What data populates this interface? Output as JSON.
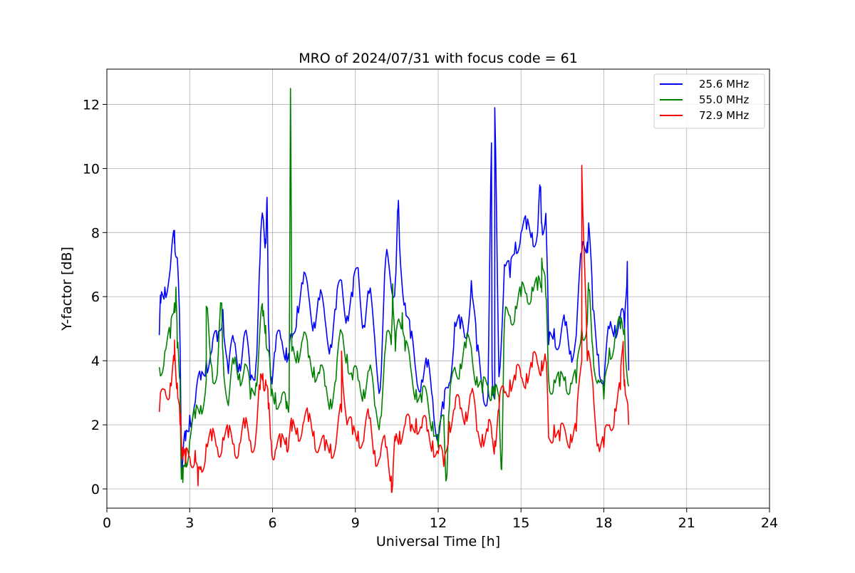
{
  "chart_data": {
    "type": "line",
    "title": "MRO of 2024/07/31 with focus code = 61",
    "xlabel": "Universal Time [h]",
    "ylabel": "Y-factor [dB]",
    "xlim": [
      0,
      24
    ],
    "ylim": [
      -0.6,
      13.1
    ],
    "xticks": [
      0,
      3,
      6,
      9,
      12,
      15,
      18,
      21,
      24
    ],
    "yticks": [
      0,
      2,
      4,
      6,
      8,
      10,
      12
    ],
    "grid": true,
    "legend_position": "top-right",
    "series": [
      {
        "name": "25.6 MHz",
        "color": "#0000ff",
        "x": [
          1.9,
          2.1,
          2.3,
          2.45,
          2.55,
          2.65,
          2.7,
          2.75,
          2.85,
          3.0,
          3.2,
          3.4,
          3.6,
          3.8,
          4.0,
          4.2,
          4.4,
          4.6,
          4.8,
          5.0,
          5.2,
          5.4,
          5.55,
          5.65,
          5.75,
          5.85,
          5.95,
          6.1,
          6.3,
          6.5,
          6.6,
          6.7,
          6.9,
          7.1,
          7.3,
          7.5,
          7.7,
          7.9,
          8.1,
          8.3,
          8.5,
          8.7,
          8.9,
          9.1,
          9.3,
          9.5,
          9.7,
          9.9,
          10.1,
          10.3,
          10.45,
          10.6,
          10.8,
          11.0,
          11.2,
          11.4,
          11.6,
          11.8,
          12.0,
          12.2,
          12.4,
          12.6,
          12.8,
          13.0,
          13.2,
          13.4,
          13.6,
          13.8,
          13.95,
          14.05,
          14.2,
          14.4,
          14.6,
          14.8,
          15.0,
          15.2,
          15.4,
          15.6,
          15.75,
          15.9,
          16.0,
          16.2,
          16.4,
          16.6,
          16.8,
          17.0,
          17.2,
          17.4,
          17.6,
          17.8,
          18.0,
          18.2,
          18.4,
          18.6,
          18.75,
          18.9
        ],
        "y": [
          4.8,
          6.3,
          6.9,
          7.8,
          7.2,
          4.5,
          1.0,
          0.9,
          1.5,
          2.3,
          2.7,
          3.4,
          4.0,
          4.3,
          4.6,
          5.6,
          3.6,
          4.6,
          3.9,
          4.9,
          3.4,
          3.9,
          7.3,
          8.5,
          7.8,
          5.2,
          3.5,
          4.3,
          4.7,
          4.4,
          4.0,
          4.7,
          5.7,
          6.4,
          6.1,
          5.2,
          5.9,
          5.3,
          4.5,
          5.6,
          6.5,
          5.4,
          6.0,
          6.9,
          5.1,
          6.1,
          4.7,
          3.1,
          7.2,
          6.3,
          6.5,
          7.6,
          5.8,
          4.7,
          3.6,
          3.4,
          3.8,
          2.8,
          1.7,
          2.5,
          3.3,
          5.2,
          5.0,
          4.7,
          6.5,
          4.3,
          3.2,
          2.9,
          3.8,
          3.0,
          3.5,
          7.0,
          6.6,
          7.7,
          8.0,
          8.1,
          8.0,
          8.0,
          8.3,
          8.6,
          4.5,
          5.0,
          4.5,
          5.1,
          4.3,
          4.8,
          7.4,
          7.7,
          5.6,
          4.2,
          3.2,
          5.0,
          5.1,
          5.4,
          5.0,
          3.7
        ],
        "spikes": [
          [
            1.95,
            5.8
          ],
          [
            2.45,
            8.0
          ],
          [
            5.8,
            9.1
          ],
          [
            10.55,
            8.8
          ],
          [
            13.93,
            10.8
          ],
          [
            14.05,
            11.9
          ],
          [
            15.7,
            9.3
          ],
          [
            17.45,
            8.3
          ],
          [
            18.85,
            7.1
          ]
        ]
      },
      {
        "name": "55.0 MHz",
        "color": "#008000",
        "x": [
          1.9,
          2.1,
          2.3,
          2.45,
          2.55,
          2.65,
          2.7,
          2.75,
          2.85,
          3.0,
          3.2,
          3.4,
          3.6,
          3.8,
          4.0,
          4.2,
          4.4,
          4.6,
          4.8,
          5.0,
          5.2,
          5.4,
          5.55,
          5.65,
          5.75,
          5.85,
          5.95,
          6.1,
          6.3,
          6.5,
          6.6,
          6.7,
          6.9,
          7.1,
          7.3,
          7.5,
          7.7,
          7.9,
          8.1,
          8.3,
          8.5,
          8.7,
          8.9,
          9.1,
          9.3,
          9.5,
          9.7,
          9.9,
          10.1,
          10.3,
          10.45,
          10.6,
          10.8,
          11.0,
          11.2,
          11.4,
          11.6,
          11.8,
          12.0,
          12.2,
          12.4,
          12.6,
          12.8,
          13.0,
          13.2,
          13.4,
          13.6,
          13.8,
          13.95,
          14.05,
          14.2,
          14.4,
          14.6,
          14.8,
          15.0,
          15.2,
          15.4,
          15.6,
          15.75,
          15.9,
          16.0,
          16.2,
          16.4,
          16.6,
          16.8,
          17.0,
          17.2,
          17.4,
          17.6,
          17.8,
          18.0,
          18.2,
          18.4,
          18.6,
          18.75,
          18.9
        ],
        "y": [
          3.8,
          4.3,
          4.7,
          5.8,
          4.4,
          3.4,
          0.3,
          0.2,
          1.0,
          1.5,
          2.2,
          2.6,
          3.4,
          3.8,
          3.6,
          4.3,
          2.6,
          3.9,
          3.6,
          3.9,
          2.8,
          3.3,
          5.1,
          5.4,
          5.1,
          4.3,
          2.9,
          3.0,
          2.7,
          2.5,
          2.8,
          4.3,
          4.3,
          4.7,
          4.1,
          3.8,
          3.6,
          3.2,
          2.8,
          3.4,
          4.9,
          4.2,
          3.4,
          3.4,
          3.1,
          3.7,
          2.6,
          2.2,
          4.5,
          4.5,
          4.3,
          5.2,
          4.3,
          3.8,
          3.1,
          2.7,
          2.9,
          2.1,
          1.3,
          2.3,
          2.5,
          3.8,
          3.9,
          4.4,
          4.4,
          3.5,
          3.0,
          3.2,
          3.2,
          2.8,
          2.9,
          5.2,
          5.4,
          5.7,
          6.0,
          6.1,
          6.3,
          6.2,
          6.3,
          6.0,
          3.4,
          3.4,
          3.2,
          3.5,
          3.3,
          3.3,
          5.0,
          5.2,
          4.4,
          3.4,
          2.8,
          4.4,
          4.7,
          5.0,
          5.0,
          3.2
        ],
        "spikes": [
          [
            2.5,
            6.3
          ],
          [
            3.6,
            5.7
          ],
          [
            4.15,
            5.8
          ],
          [
            6.65,
            12.5
          ],
          [
            10.35,
            6.4
          ],
          [
            10.7,
            5.5
          ],
          [
            12.3,
            0.3
          ],
          [
            14.3,
            0.6
          ],
          [
            15.75,
            7.2
          ],
          [
            17.45,
            6.2
          ]
        ]
      },
      {
        "name": "72.9 MHz",
        "color": "#ff0000",
        "x": [
          1.9,
          2.1,
          2.3,
          2.45,
          2.55,
          2.65,
          2.7,
          2.75,
          2.85,
          3.0,
          3.2,
          3.4,
          3.6,
          3.8,
          4.0,
          4.2,
          4.4,
          4.6,
          4.8,
          5.0,
          5.2,
          5.4,
          5.55,
          5.65,
          5.75,
          5.85,
          5.95,
          6.1,
          6.3,
          6.5,
          6.6,
          6.7,
          6.9,
          7.1,
          7.3,
          7.5,
          7.7,
          7.9,
          8.1,
          8.3,
          8.5,
          8.7,
          8.9,
          9.1,
          9.3,
          9.5,
          9.7,
          9.9,
          10.1,
          10.3,
          10.45,
          10.6,
          10.8,
          11.0,
          11.2,
          11.4,
          11.6,
          11.8,
          12.0,
          12.2,
          12.4,
          12.6,
          12.8,
          13.0,
          13.2,
          13.4,
          13.6,
          13.8,
          13.95,
          14.05,
          14.2,
          14.4,
          14.6,
          14.8,
          15.0,
          15.2,
          15.4,
          15.6,
          15.75,
          15.9,
          16.0,
          16.2,
          16.4,
          16.6,
          16.8,
          17.0,
          17.2,
          17.4,
          17.6,
          17.8,
          18.0,
          18.2,
          18.4,
          18.6,
          18.75,
          18.9
        ],
        "y": [
          2.4,
          3.1,
          3.3,
          4.0,
          3.3,
          2.0,
          1.5,
          1.3,
          0.8,
          1.0,
          1.2,
          0.7,
          1.4,
          1.5,
          1.3,
          1.6,
          1.6,
          1.4,
          1.4,
          1.9,
          1.5,
          1.7,
          3.1,
          3.6,
          3.4,
          2.5,
          1.5,
          1.2,
          1.3,
          1.6,
          1.6,
          1.8,
          1.9,
          2.0,
          2.1,
          1.8,
          1.3,
          1.2,
          1.4,
          1.4,
          2.4,
          2.0,
          1.7,
          1.8,
          1.5,
          2.2,
          1.2,
          1.0,
          1.3,
          0.4,
          1.5,
          1.8,
          2.0,
          1.8,
          2.2,
          1.9,
          1.8,
          1.5,
          1.1,
          0.7,
          2.1,
          2.5,
          2.5,
          2.4,
          3.0,
          1.8,
          1.7,
          1.8,
          1.6,
          1.5,
          2.5,
          3.0,
          3.4,
          3.4,
          3.5,
          3.6,
          3.8,
          3.9,
          4.0,
          4.0,
          1.6,
          2.0,
          1.5,
          1.8,
          1.7,
          1.8,
          4.0,
          4.0,
          3.3,
          1.4,
          1.3,
          2.0,
          2.5,
          3.1,
          3.4,
          2.0
        ],
        "spikes": [
          [
            2.45,
            4.6
          ],
          [
            3.3,
            0.1
          ],
          [
            8.5,
            4.3
          ],
          [
            10.35,
            0.1
          ],
          [
            17.2,
            10.1
          ],
          [
            18.7,
            4.6
          ]
        ]
      }
    ]
  }
}
